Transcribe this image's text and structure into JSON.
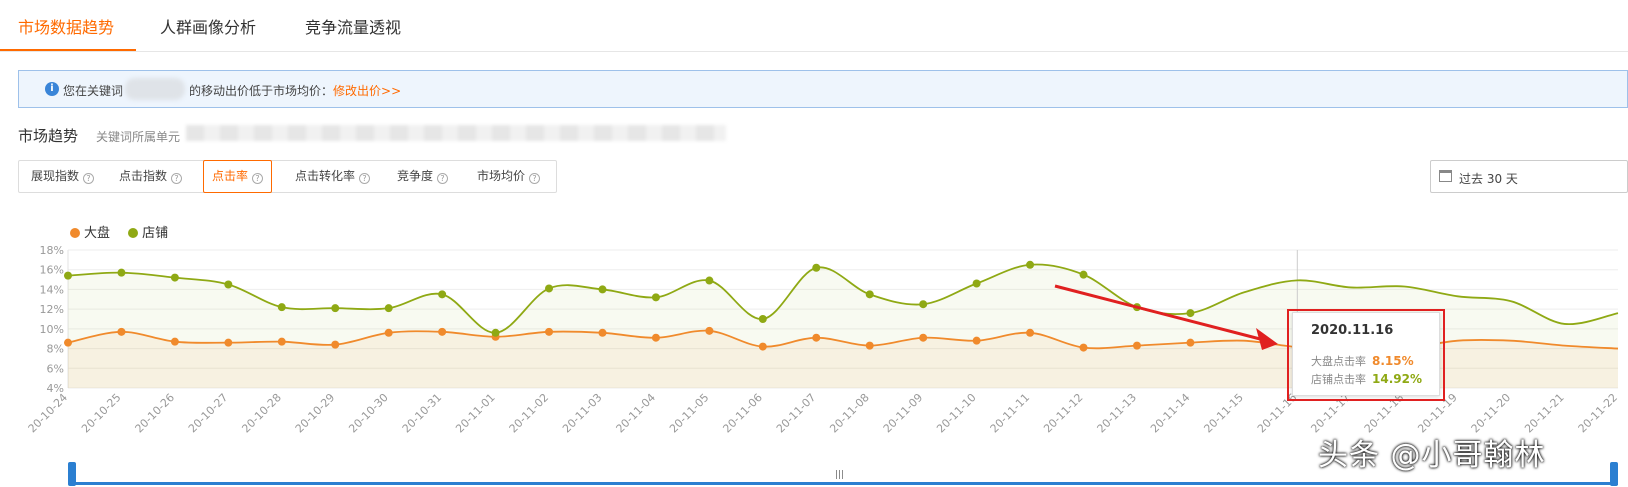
{
  "tabs": [
    {
      "label": "市场数据趋势",
      "active": true
    },
    {
      "label": "人群画像分析",
      "active": false
    },
    {
      "label": "竞争流量透视",
      "active": false
    }
  ],
  "notice": {
    "prefix": "您在关键词",
    "suffix": "的移动出价低于市场均价：",
    "link": "修改出价>>"
  },
  "section": {
    "title": "市场趋势",
    "subtitle": "关键词所属单元"
  },
  "metrics": [
    {
      "label": "展现指数",
      "active": false
    },
    {
      "label": "点击指数",
      "active": false
    },
    {
      "label": "点击率",
      "active": true
    },
    {
      "label": "点击转化率",
      "active": false
    },
    {
      "label": "竞争度",
      "active": false
    },
    {
      "label": "市场均价",
      "active": false
    }
  ],
  "date_range": "过去 30 天",
  "colors": {
    "market": "#f08a2c",
    "store": "#8fa914",
    "accent": "#ff6a00"
  },
  "chart_data": {
    "type": "line",
    "categories": [
      "20-10-24",
      "20-10-25",
      "20-10-26",
      "20-10-27",
      "20-10-28",
      "20-10-29",
      "20-10-30",
      "20-10-31",
      "20-11-01",
      "20-11-02",
      "20-11-03",
      "20-11-04",
      "20-11-05",
      "20-11-06",
      "20-11-07",
      "20-11-08",
      "20-11-09",
      "20-11-10",
      "20-11-11",
      "20-11-12",
      "20-11-13",
      "20-11-14",
      "20-11-15",
      "20-11-16",
      "20-11-17",
      "20-11-18",
      "20-11-19",
      "20-11-20",
      "20-11-21",
      "20-11-22"
    ],
    "series": [
      {
        "name": "大盘",
        "values": [
          8.6,
          9.7,
          8.7,
          8.6,
          8.7,
          8.4,
          9.6,
          9.7,
          9.2,
          9.7,
          9.6,
          9.1,
          9.8,
          8.2,
          9.1,
          8.3,
          9.1,
          8.8,
          9.6,
          8.1,
          8.3,
          8.6,
          8.8,
          8.15,
          7.9,
          8.0,
          8.8,
          8.8,
          8.3,
          8.0
        ]
      },
      {
        "name": "店铺",
        "values": [
          15.4,
          15.7,
          15.2,
          14.5,
          12.2,
          12.1,
          12.1,
          13.5,
          9.6,
          14.1,
          14.0,
          13.2,
          14.9,
          11.0,
          16.2,
          13.5,
          12.5,
          14.6,
          16.5,
          15.5,
          12.2,
          11.6,
          13.7,
          14.92,
          14.2,
          14.3,
          13.3,
          12.8,
          10.5,
          11.6
        ]
      }
    ],
    "marked_points": 22,
    "ylim": [
      4,
      18
    ],
    "yticks": [
      "18%",
      "16%",
      "14%",
      "12%",
      "10%",
      "8%",
      "6%",
      "4%"
    ],
    "legend": "top-left",
    "grid": true
  },
  "tooltip": {
    "date": "2020.11.16",
    "market_label": "大盘点击率",
    "market_value": "8.15%",
    "store_label": "店铺点击率",
    "store_value": "14.92%"
  },
  "watermark": "头条 @小哥翰林"
}
